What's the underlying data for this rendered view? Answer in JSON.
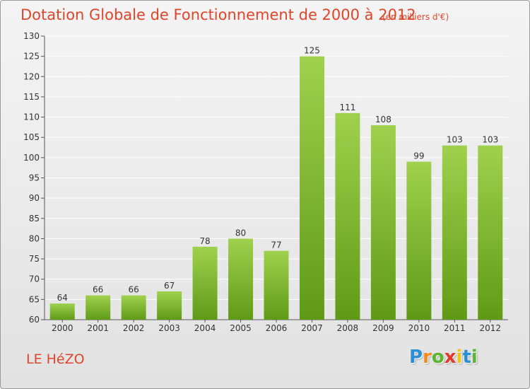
{
  "header": {
    "title": "Dotation Globale de Fonctionnement de 2000 à 2012",
    "subtitle": "(en milliers d'€)"
  },
  "footer": {
    "place": "LE HéZO",
    "logo_letters": [
      "P",
      "r",
      "o",
      "x",
      "i",
      "t",
      "i"
    ]
  },
  "colors": {
    "bar_top": "#9fd14e",
    "bar_bottom": "#5f9a16",
    "text_accent": "#e0452a",
    "grid": "#ffffff"
  },
  "chart_data": {
    "type": "bar",
    "title": "Dotation Globale de Fonctionnement de 2000 à 2012",
    "subtitle": "(en milliers d'€)",
    "xlabel": "",
    "ylabel": "",
    "categories": [
      "2000",
      "2001",
      "2002",
      "2003",
      "2004",
      "2005",
      "2006",
      "2007",
      "2008",
      "2009",
      "2010",
      "2011",
      "2012"
    ],
    "values": [
      64,
      66,
      66,
      67,
      78,
      80,
      77,
      125,
      111,
      108,
      99,
      103,
      103
    ],
    "ylim": [
      60,
      130
    ],
    "yticks": [
      60,
      65,
      70,
      75,
      80,
      85,
      90,
      95,
      100,
      105,
      110,
      115,
      120,
      125,
      130
    ],
    "grid": true,
    "data_labels": true
  }
}
